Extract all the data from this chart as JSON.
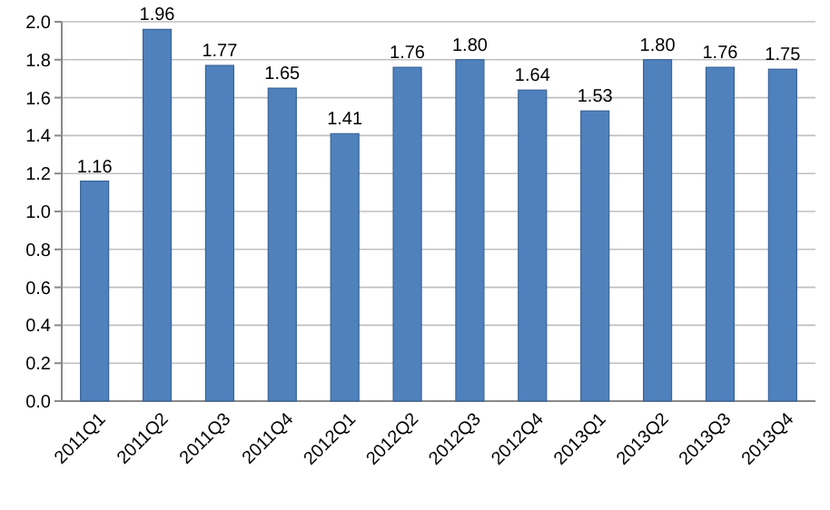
{
  "chart_data": {
    "type": "bar",
    "categories": [
      "2011Q1",
      "2011Q2",
      "2011Q3",
      "2011Q4",
      "2012Q1",
      "2012Q2",
      "2012Q3",
      "2012Q4",
      "2013Q1",
      "2013Q2",
      "2013Q3",
      "2013Q4"
    ],
    "values": [
      1.16,
      1.96,
      1.77,
      1.65,
      1.41,
      1.76,
      1.8,
      1.64,
      1.53,
      1.8,
      1.76,
      1.75
    ],
    "value_labels": [
      "1.16",
      "1.96",
      "1.77",
      "1.65",
      "1.41",
      "1.76",
      "1.80",
      "1.64",
      "1.53",
      "1.80",
      "1.76",
      "1.75"
    ],
    "color": "#4f81bd",
    "ylim": [
      0,
      2
    ],
    "yticks": [
      {
        "value": 0,
        "label": "0.0"
      },
      {
        "value": 0.2,
        "label": "0.2"
      },
      {
        "value": 0.4,
        "label": "0.4"
      },
      {
        "value": 0.6,
        "label": "0.6"
      },
      {
        "value": 0.8,
        "label": "0.8"
      },
      {
        "value": 1,
        "label": "1.0"
      },
      {
        "value": 1.2,
        "label": "1.2"
      },
      {
        "value": 1.4,
        "label": "1.4"
      },
      {
        "value": 1.6,
        "label": "1.6"
      },
      {
        "value": 1.8,
        "label": "1.8"
      },
      {
        "value": 2,
        "label": "2.0"
      }
    ],
    "grid": true
  }
}
